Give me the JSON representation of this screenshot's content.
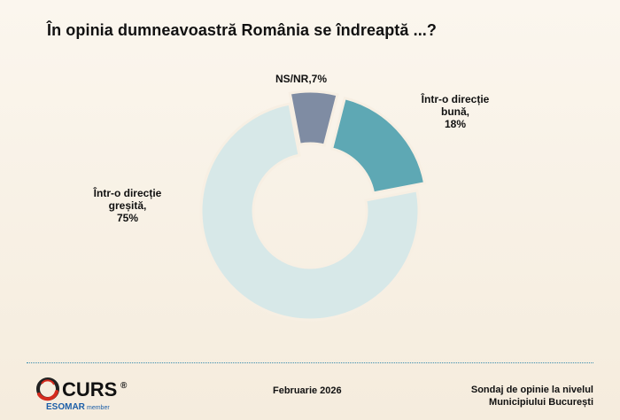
{
  "title": "În opinia dumneavoastră România se îndreaptă ...?",
  "chart_data": {
    "type": "pie",
    "donut": true,
    "title": "În opinia dumneavoastră România se îndreaptă ...?",
    "slices": [
      {
        "label_lines": [
          "NS/NR,7%"
        ],
        "value": 7,
        "color": "#7f8ca3"
      },
      {
        "label_lines": [
          "Într-o direcție",
          "bună,",
          "18%"
        ],
        "value": 18,
        "color": "#5ea8b4"
      },
      {
        "label_lines": [
          "Într-o direcție",
          "greșită,",
          "75%"
        ],
        "value": 75,
        "color": "#d7e8e8"
      }
    ]
  },
  "footer": {
    "brand": "CURS",
    "registered": "®",
    "esomar": "ESOMAR",
    "member": "member",
    "date": "Februarie 2026",
    "note_lines": [
      "Sondaj de opinie la nivelul",
      "Municipiului București"
    ]
  }
}
